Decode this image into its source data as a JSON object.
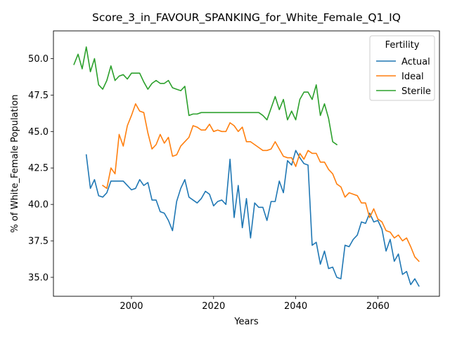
{
  "chart_data": {
    "type": "line",
    "title": "Score_3_in_FAVOUR_SPANKING_for_White_Female_Q1_IQ",
    "xlabel": "Years",
    "ylabel": "% of White_Female Population",
    "xlim": [
      1981,
      2075
    ],
    "ylim": [
      33.7,
      51.9
    ],
    "xticks": [
      2000,
      2020,
      2040,
      2060
    ],
    "yticks": [
      35.0,
      37.5,
      40.0,
      42.5,
      45.0,
      47.5,
      50.0
    ],
    "ytick_labels": [
      "35.0",
      "37.5",
      "40.0",
      "42.5",
      "45.0",
      "47.5",
      "50.0"
    ],
    "grid": false,
    "legend": {
      "title": "Fertility",
      "position": "upper right"
    },
    "series": [
      {
        "name": "Actual",
        "color": "#1f77b4",
        "x": [
          1989,
          1990,
          1991,
          1992,
          1993,
          1994,
          1995,
          1996,
          1997,
          1998,
          1999,
          2000,
          2001,
          2002,
          2003,
          2004,
          2005,
          2006,
          2007,
          2008,
          2009,
          2010,
          2011,
          2012,
          2013,
          2014,
          2015,
          2016,
          2017,
          2018,
          2019,
          2020,
          2021,
          2022,
          2023,
          2024,
          2025,
          2026,
          2027,
          2028,
          2029,
          2030,
          2031,
          2032,
          2033,
          2034,
          2035,
          2036,
          2037,
          2038,
          2039,
          2040,
          2041,
          2042,
          2043,
          2044,
          2045,
          2046,
          2047,
          2048,
          2049,
          2050,
          2051,
          2052,
          2053,
          2054,
          2055,
          2056,
          2057,
          2058,
          2059,
          2060,
          2061,
          2062,
          2063,
          2064,
          2065,
          2066,
          2067,
          2068,
          2069,
          2070
        ],
        "y": [
          43.4,
          41.1,
          41.7,
          40.6,
          40.5,
          40.8,
          41.6,
          41.6,
          41.6,
          41.6,
          41.3,
          41.0,
          41.1,
          41.7,
          41.3,
          41.5,
          40.3,
          40.3,
          39.5,
          39.4,
          38.9,
          38.2,
          40.2,
          41.1,
          41.7,
          40.5,
          40.3,
          40.1,
          40.4,
          40.9,
          40.7,
          39.9,
          40.2,
          40.3,
          40.0,
          43.1,
          39.1,
          41.3,
          38.4,
          40.4,
          37.7,
          40.1,
          39.8,
          39.8,
          38.9,
          40.2,
          40.2,
          41.6,
          40.8,
          43.0,
          42.7,
          43.7,
          43.2,
          42.8,
          42.7,
          37.2,
          37.4,
          35.9,
          36.8,
          35.6,
          35.7,
          35.0,
          34.9,
          37.2,
          37.1,
          37.6,
          37.9,
          38.8,
          38.7,
          39.4,
          38.8,
          38.9,
          38.3,
          36.8,
          37.6,
          36.1,
          36.6,
          35.2,
          35.4,
          34.5,
          34.9,
          34.4
        ]
      },
      {
        "name": "Ideal",
        "color": "#ff7f0e",
        "x": [
          1993,
          1994,
          1995,
          1996,
          1997,
          1998,
          1999,
          2000,
          2001,
          2002,
          2003,
          2004,
          2005,
          2006,
          2007,
          2008,
          2009,
          2010,
          2011,
          2012,
          2013,
          2014,
          2015,
          2016,
          2017,
          2018,
          2019,
          2020,
          2021,
          2022,
          2023,
          2024,
          2025,
          2026,
          2027,
          2028,
          2029,
          2030,
          2031,
          2032,
          2033,
          2034,
          2035,
          2036,
          2037,
          2038,
          2039,
          2040,
          2041,
          2042,
          2043,
          2044,
          2045,
          2046,
          2047,
          2048,
          2049,
          2050,
          2051,
          2052,
          2053,
          2054,
          2055,
          2056,
          2057,
          2058,
          2059,
          2060,
          2061,
          2062,
          2063,
          2064,
          2065,
          2066,
          2067,
          2068,
          2069,
          2070
        ],
        "y": [
          41.3,
          41.1,
          42.5,
          42.1,
          44.8,
          44.0,
          45.4,
          46.1,
          46.9,
          46.4,
          46.3,
          44.9,
          43.8,
          44.1,
          44.8,
          44.2,
          44.6,
          43.3,
          43.4,
          44.0,
          44.3,
          44.6,
          45.4,
          45.3,
          45.1,
          45.1,
          45.5,
          45.0,
          45.1,
          45.0,
          45.0,
          45.6,
          45.4,
          45.0,
          45.3,
          44.3,
          44.3,
          44.1,
          43.9,
          43.7,
          43.7,
          43.8,
          44.3,
          43.8,
          43.3,
          43.2,
          43.2,
          42.6,
          43.5,
          43.1,
          43.7,
          43.5,
          43.5,
          42.9,
          42.9,
          42.4,
          42.1,
          41.4,
          41.2,
          40.5,
          40.8,
          40.7,
          40.6,
          40.1,
          40.1,
          39.1,
          39.7,
          39.0,
          38.8,
          38.2,
          38.1,
          37.7,
          37.9,
          37.5,
          37.7,
          37.1,
          36.4,
          36.1
        ]
      },
      {
        "name": "Sterile",
        "color": "#2ca02c",
        "x": [
          1986,
          1987,
          1988,
          1989,
          1990,
          1991,
          1992,
          1993,
          1994,
          1995,
          1996,
          1997,
          1998,
          1999,
          2000,
          2001,
          2002,
          2003,
          2004,
          2005,
          2006,
          2007,
          2008,
          2009,
          2010,
          2011,
          2012,
          2013,
          2014,
          2015,
          2016,
          2017,
          2018,
          2019,
          2020,
          2021,
          2022,
          2023,
          2024,
          2025,
          2026,
          2027,
          2028,
          2029,
          2030,
          2031,
          2032,
          2033,
          2034,
          2035,
          2036,
          2037,
          2038,
          2039,
          2040,
          2041,
          2042,
          2043,
          2044,
          2045,
          2046,
          2047,
          2048,
          2049,
          2050
        ],
        "y": [
          49.6,
          50.3,
          49.3,
          50.8,
          49.1,
          50.0,
          48.2,
          47.9,
          48.5,
          49.5,
          48.5,
          48.8,
          48.9,
          48.6,
          49.0,
          49.0,
          49.0,
          48.4,
          47.9,
          48.3,
          48.5,
          48.3,
          48.3,
          48.5,
          48.0,
          47.9,
          47.8,
          48.1,
          46.1,
          46.2,
          46.2,
          46.3,
          46.3,
          46.3,
          46.3,
          46.3,
          46.3,
          46.3,
          46.3,
          46.3,
          46.3,
          46.3,
          46.3,
          46.3,
          46.3,
          46.3,
          46.1,
          45.8,
          46.6,
          47.4,
          46.5,
          47.2,
          45.8,
          46.4,
          45.8,
          47.2,
          47.7,
          47.7,
          47.2,
          48.2,
          46.1,
          46.9,
          45.9,
          44.3,
          44.1
        ]
      }
    ]
  }
}
